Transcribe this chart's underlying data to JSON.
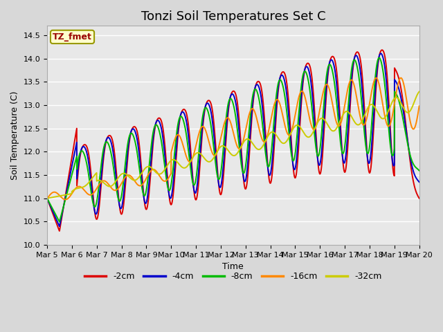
{
  "title": "Tonzi Soil Temperatures Set C",
  "xlabel": "Time",
  "ylabel": "Soil Temperature (C)",
  "ylim": [
    10.0,
    14.7
  ],
  "series_colors": [
    "#dd0000",
    "#0000cc",
    "#00bb00",
    "#ff8800",
    "#cccc00"
  ],
  "series_labels": [
    "-2cm",
    "-4cm",
    "-8cm",
    "-16cm",
    "-32cm"
  ],
  "legend_box_text": "TZ_fmet",
  "legend_box_color": "#ffffcc",
  "legend_box_edgecolor": "#999900",
  "legend_box_textcolor": "#990000",
  "bg_color": "#d8d8d8",
  "plot_bg_color": "#e8e8e8",
  "grid_color": "#ffffff",
  "title_fontsize": 13,
  "axis_fontsize": 9,
  "tick_fontsize": 8,
  "line_width": 1.4,
  "x_tick_labels": [
    "Mar 5",
    "Mar 6",
    "Mar 7",
    "Mar 8",
    "Mar 9",
    "Mar 10",
    "Mar 11",
    "Mar 12",
    "Mar 13",
    "Mar 14",
    "Mar 15",
    "Mar 16",
    "Mar 17",
    "Mar 18",
    "Mar 19",
    "Mar 20"
  ]
}
